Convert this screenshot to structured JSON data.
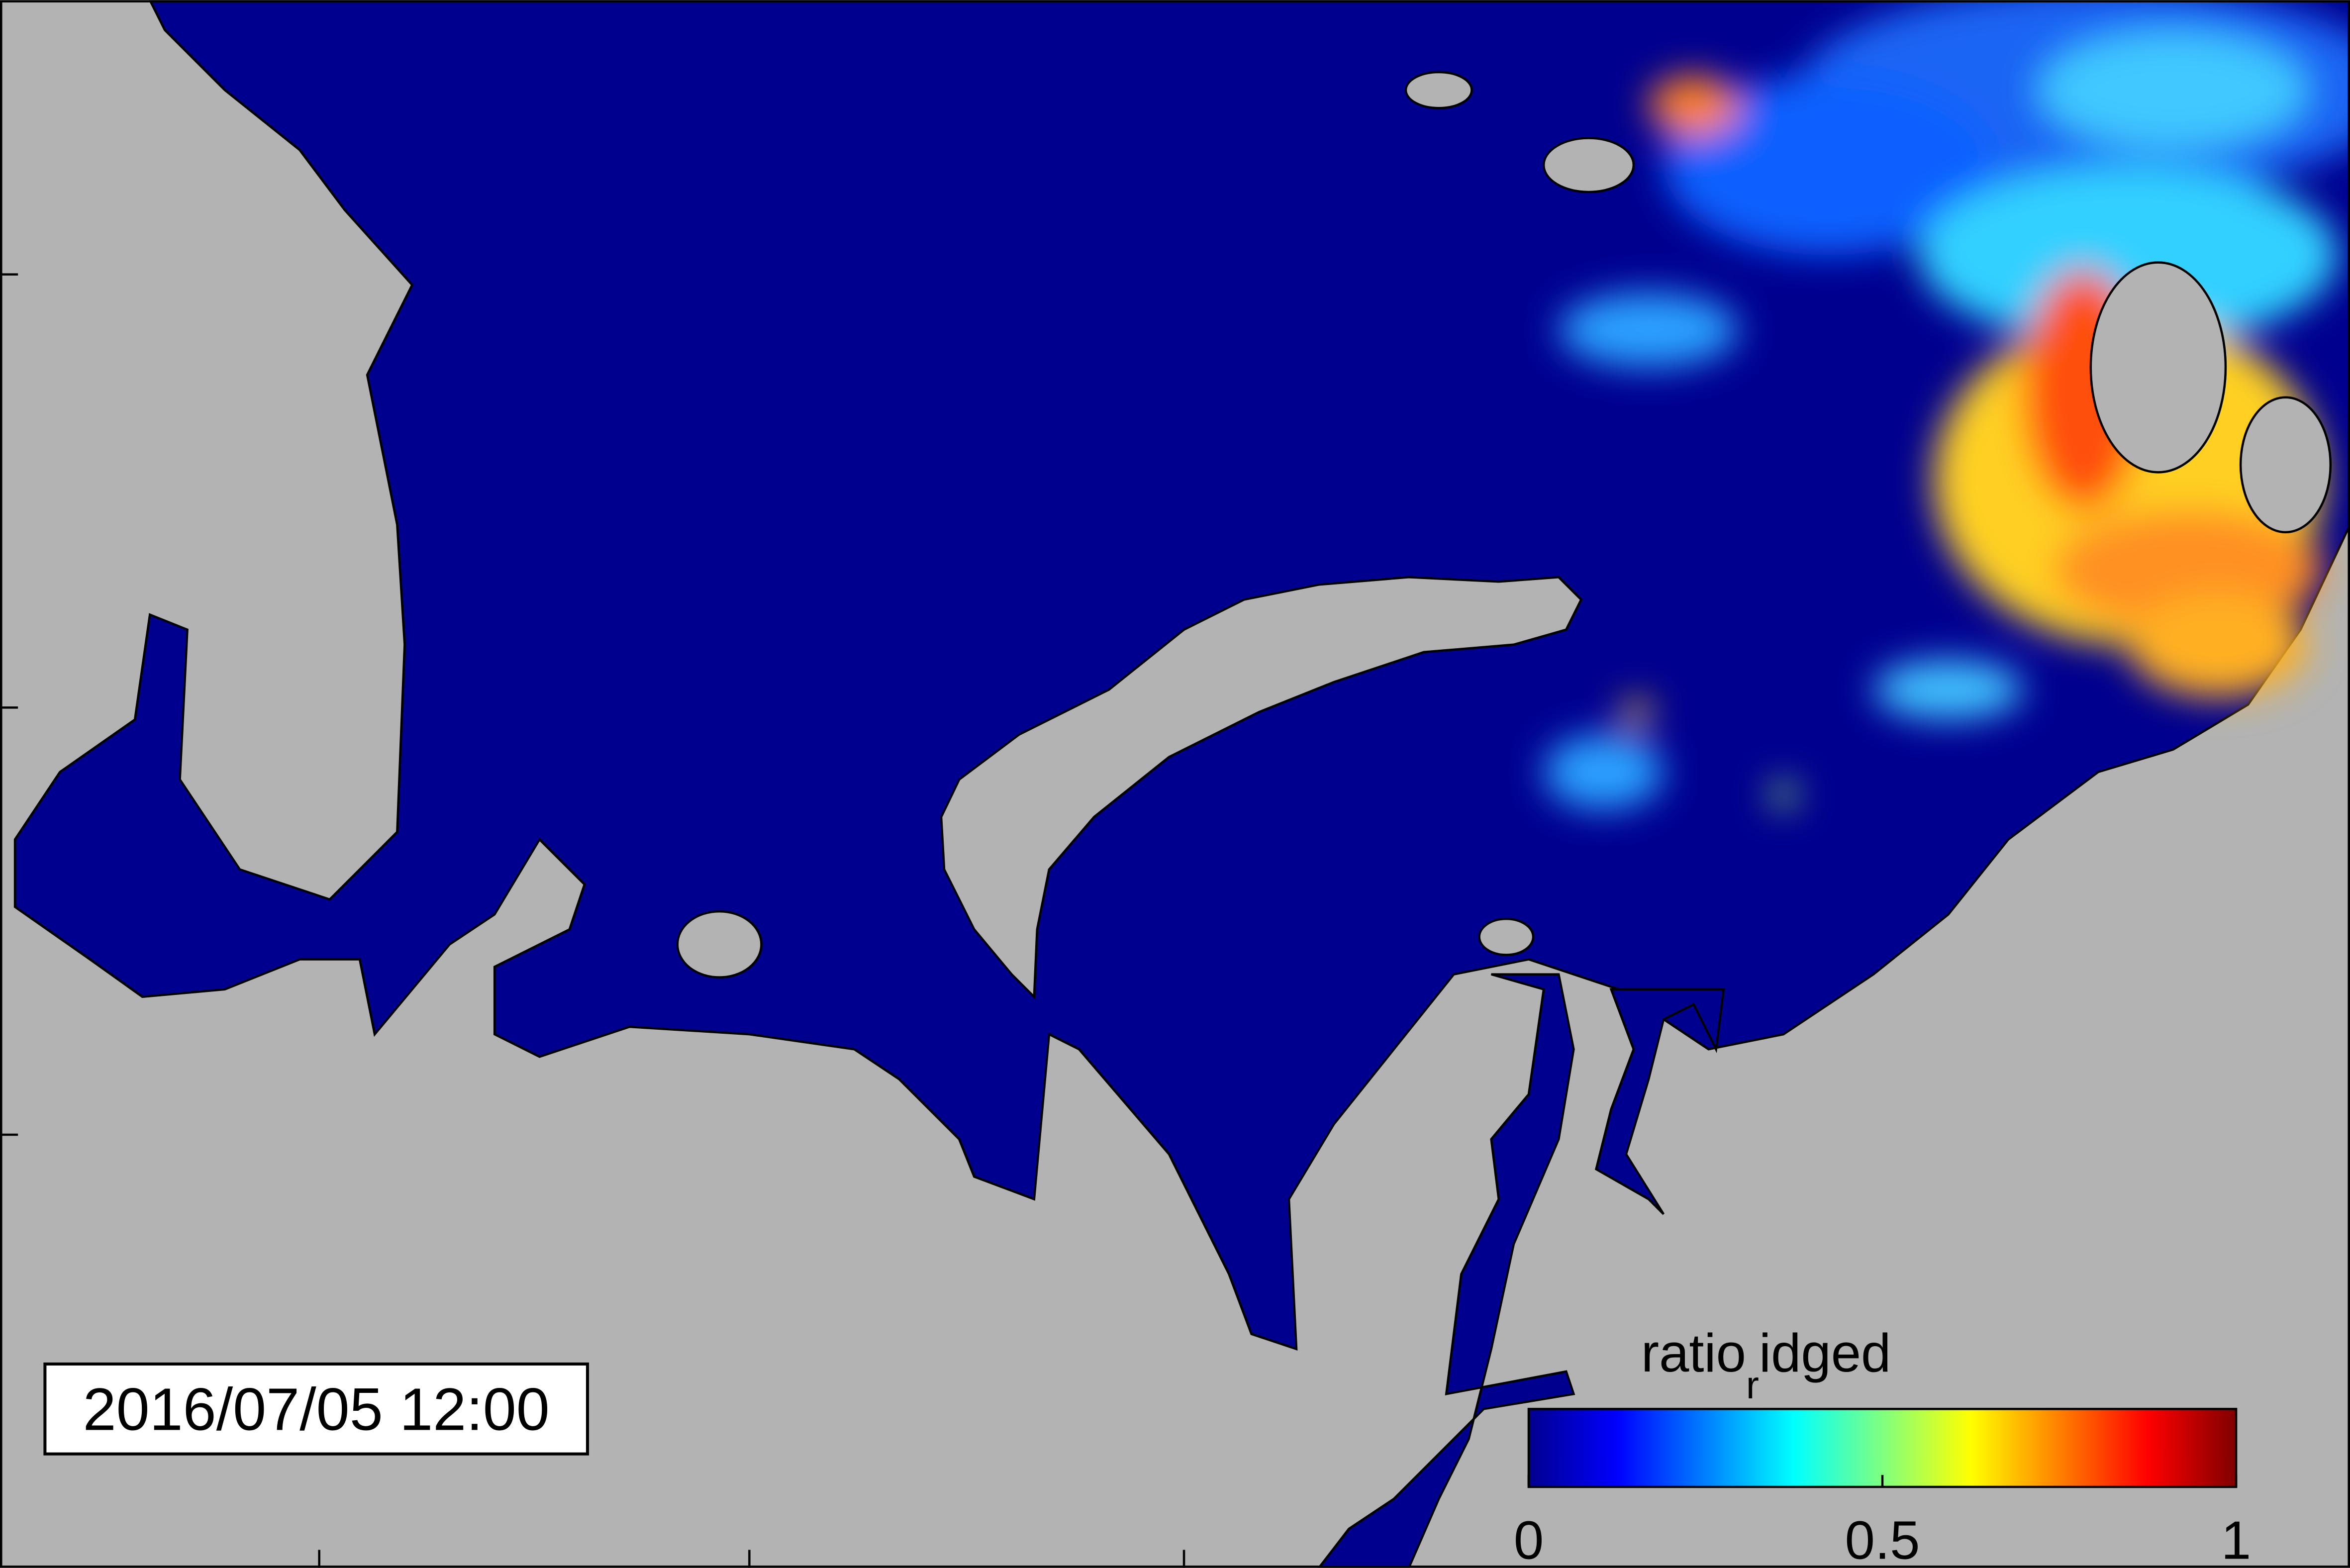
{
  "timestamp": "2016/07/05 12:00",
  "colorbar": {
    "title": "ratio",
    "title_subscript": "r",
    "title_rest": "idged",
    "lim": [
      0,
      1
    ],
    "ticks": [
      0,
      0.5,
      1
    ]
  }
}
